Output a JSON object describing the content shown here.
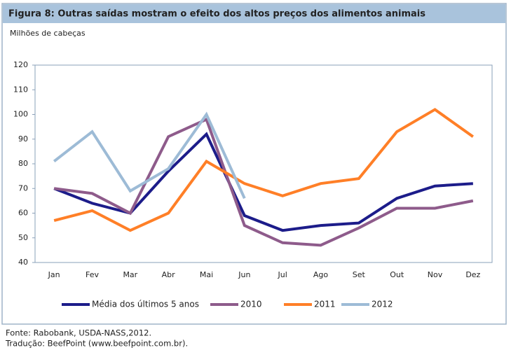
{
  "chart_data": {
    "type": "line",
    "title": "Figura 8: Outras saídas mostram o efeito dos altos preços dos alimentos animais",
    "ylabel": "Milhões de cabeças",
    "categories": [
      "Jan",
      "Fev",
      "Mar",
      "Abr",
      "Mai",
      "Jun",
      "Jul",
      "Ago",
      "Set",
      "Out",
      "Nov",
      "Dez"
    ],
    "series": [
      {
        "name": "Média dos últimos 5 anos",
        "color": "#1c1c8a",
        "values": [
          70,
          64,
          60,
          77,
          92,
          59,
          53,
          55,
          56,
          66,
          71,
          72
        ]
      },
      {
        "name": "2010",
        "color": "#8e5b8b",
        "values": [
          70,
          68,
          60,
          91,
          98,
          55,
          48,
          47,
          54,
          62,
          62,
          65
        ]
      },
      {
        "name": "2011",
        "color": "#ff7f27",
        "values": [
          57,
          61,
          53,
          60,
          81,
          72,
          67,
          72,
          74,
          93,
          102,
          91
        ]
      },
      {
        "name": "2012",
        "color": "#9dbbd6",
        "values": [
          81,
          93,
          69,
          78,
          100,
          66,
          null,
          null,
          null,
          null,
          null,
          null
        ]
      }
    ],
    "ylim": [
      40,
      120
    ],
    "yticks": [
      40,
      50,
      60,
      70,
      80,
      90,
      100,
      110,
      120
    ],
    "grid": false,
    "source": [
      "Fonte: Rabobank, USDA-NASS,2012.",
      "Tradução: BeefPoint (www.beefpoint.com.br)."
    ]
  }
}
